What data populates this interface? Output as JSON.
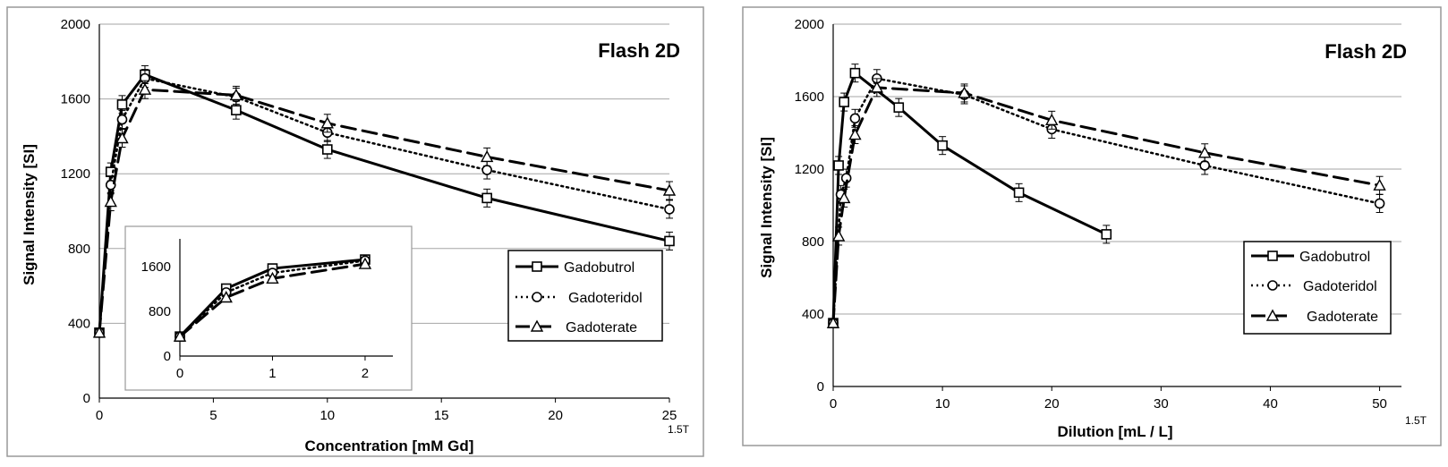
{
  "chart_data": [
    {
      "type": "line",
      "title": "Flash 2D",
      "xlabel": "Concentration [mM Gd]",
      "ylabel": "Signal Intensity [SI]",
      "corner_label": "1.5T",
      "xlim": [
        0,
        25
      ],
      "ylim": [
        0,
        2000
      ],
      "xticks": [
        "0",
        "5",
        "10",
        "15",
        "20",
        "25"
      ],
      "yticks": [
        "0",
        "400",
        "800",
        "1200",
        "1600",
        "2000"
      ],
      "grid": true,
      "legend_position": "right",
      "series": [
        {
          "name": "Gadobutrol",
          "marker": "square",
          "style": "solid",
          "x": [
            0,
            0.5,
            1,
            2,
            6,
            10,
            17,
            25
          ],
          "y": [
            350,
            1210,
            1570,
            1730,
            1540,
            1330,
            1070,
            840
          ]
        },
        {
          "name": "Gadoteridol",
          "marker": "circle",
          "style": "dotted",
          "x": [
            0,
            0.5,
            1,
            2,
            6,
            10,
            17,
            25
          ],
          "y": [
            350,
            1140,
            1490,
            1710,
            1610,
            1420,
            1220,
            1010
          ]
        },
        {
          "name": "Gadoterate",
          "marker": "triangle",
          "style": "dashed",
          "x": [
            0,
            0.5,
            1,
            2,
            6,
            10,
            17,
            25
          ],
          "y": [
            350,
            1050,
            1390,
            1650,
            1620,
            1470,
            1290,
            1110
          ]
        }
      ],
      "inset": {
        "xlim": [
          0,
          2.3
        ],
        "ylim": [
          0,
          2100
        ],
        "xticks": [
          "0",
          "1",
          "2"
        ],
        "yticks": [
          "0",
          "800",
          "1600"
        ],
        "series": [
          {
            "name": "Gadobutrol",
            "marker": "square",
            "style": "solid",
            "x": [
              0,
              0.5,
              1,
              2
            ],
            "y": [
              350,
              1210,
              1570,
              1730
            ]
          },
          {
            "name": "Gadoteridol",
            "marker": "circle",
            "style": "dotted",
            "x": [
              0,
              0.5,
              1,
              2
            ],
            "y": [
              350,
              1140,
              1490,
              1710
            ]
          },
          {
            "name": "Gadoterate",
            "marker": "triangle",
            "style": "dashed",
            "x": [
              0,
              0.5,
              1,
              2
            ],
            "y": [
              350,
              1050,
              1390,
              1650
            ]
          }
        ]
      }
    },
    {
      "type": "line",
      "title": "Flash 2D",
      "xlabel": "Dilution [mL / L]",
      "ylabel": "Signal Intensity [SI]",
      "corner_label": "1.5T",
      "xlim": [
        0,
        52
      ],
      "ylim": [
        0,
        2000
      ],
      "xticks": [
        "0",
        "10",
        "20",
        "30",
        "40",
        "50"
      ],
      "yticks": [
        "0",
        "400",
        "800",
        "1200",
        "1600",
        "2000"
      ],
      "grid": true,
      "legend_position": "bottom-right",
      "series": [
        {
          "name": "Gadobutrol",
          "marker": "square",
          "style": "solid",
          "x": [
            0,
            0.5,
            1,
            2,
            6,
            10,
            17,
            25
          ],
          "y": [
            350,
            1220,
            1570,
            1730,
            1540,
            1330,
            1070,
            840
          ]
        },
        {
          "name": "Gadoteridol",
          "marker": "circle",
          "style": "dotted",
          "x": [
            0,
            0.7,
            1.2,
            2,
            4,
            12,
            20,
            34,
            50
          ],
          "y": [
            350,
            1060,
            1150,
            1480,
            1700,
            1610,
            1420,
            1220,
            1010
          ]
        },
        {
          "name": "Gadoterate",
          "marker": "triangle",
          "style": "dashed",
          "x": [
            0,
            0.5,
            1,
            2,
            4,
            12,
            20,
            34,
            50
          ],
          "y": [
            350,
            830,
            1040,
            1390,
            1650,
            1620,
            1470,
            1290,
            1110
          ]
        }
      ]
    }
  ],
  "legend_labels": [
    "Gadobutrol",
    "Gadoteridol",
    "Gadoterate"
  ]
}
